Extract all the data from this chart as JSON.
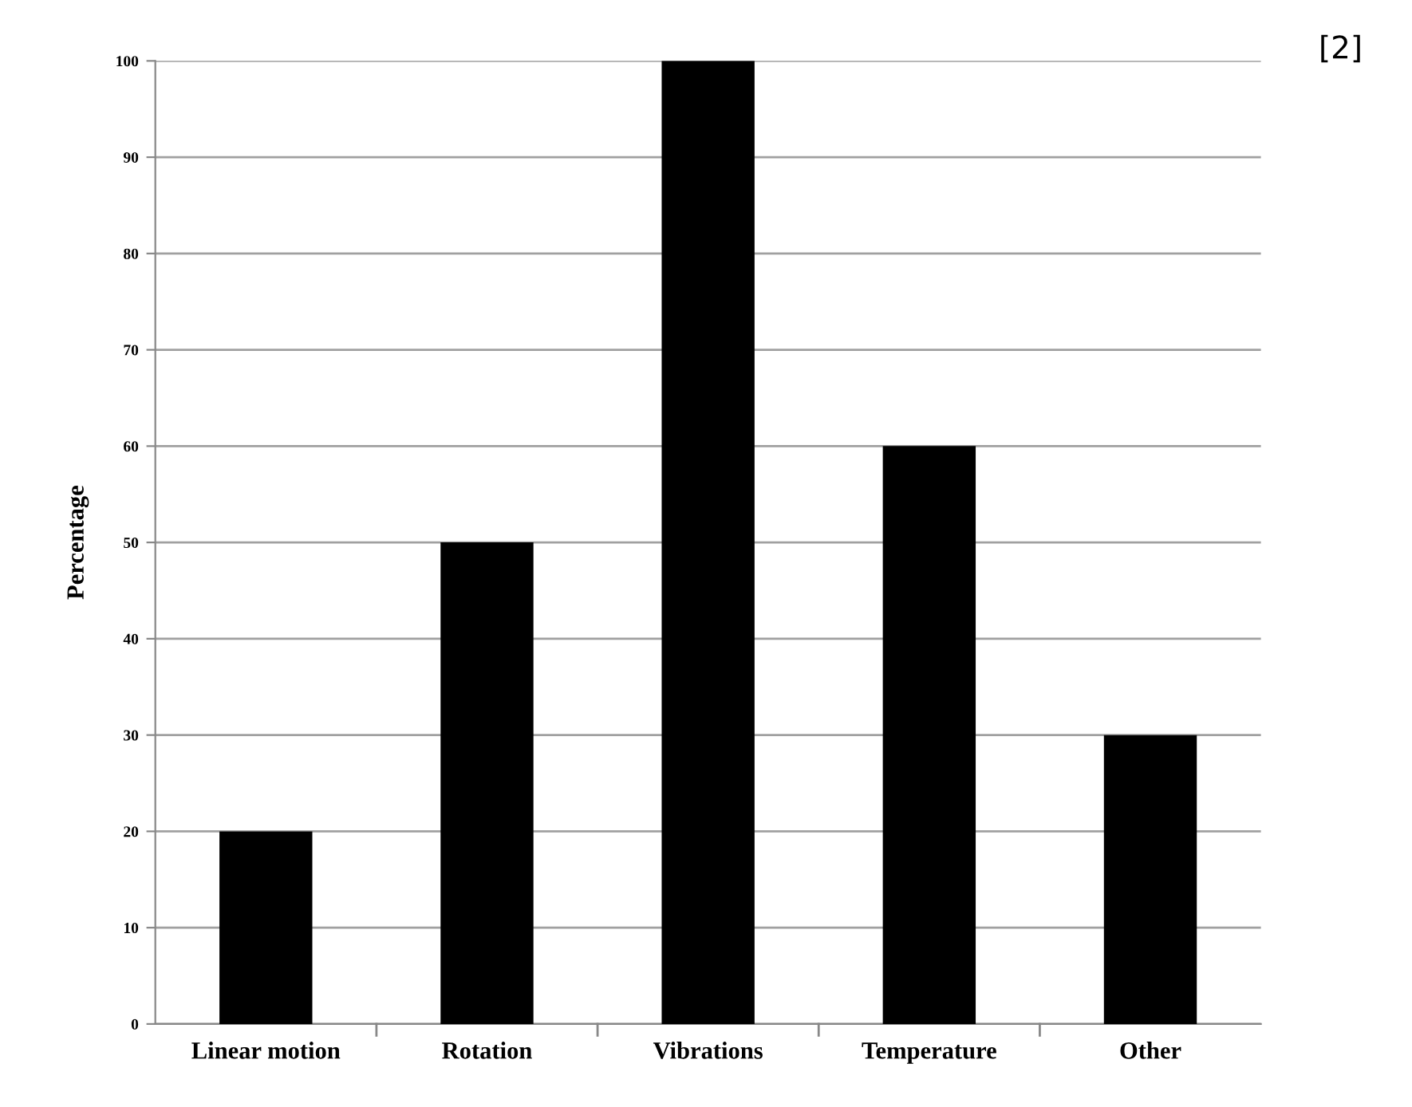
{
  "chart_data": {
    "type": "bar",
    "ylabel": "Percentage",
    "categories": [
      "Linear motion",
      "Rotation",
      "Vibrations",
      "Temperature",
      "Other"
    ],
    "values": [
      20,
      50,
      100,
      60,
      30
    ],
    "color": "#000000",
    "ylim": [
      0,
      100
    ],
    "yticks": [
      0,
      10,
      20,
      30,
      40,
      50,
      60,
      70,
      80,
      90,
      100
    ],
    "grid": "y",
    "annotations": [
      "[2]"
    ]
  }
}
